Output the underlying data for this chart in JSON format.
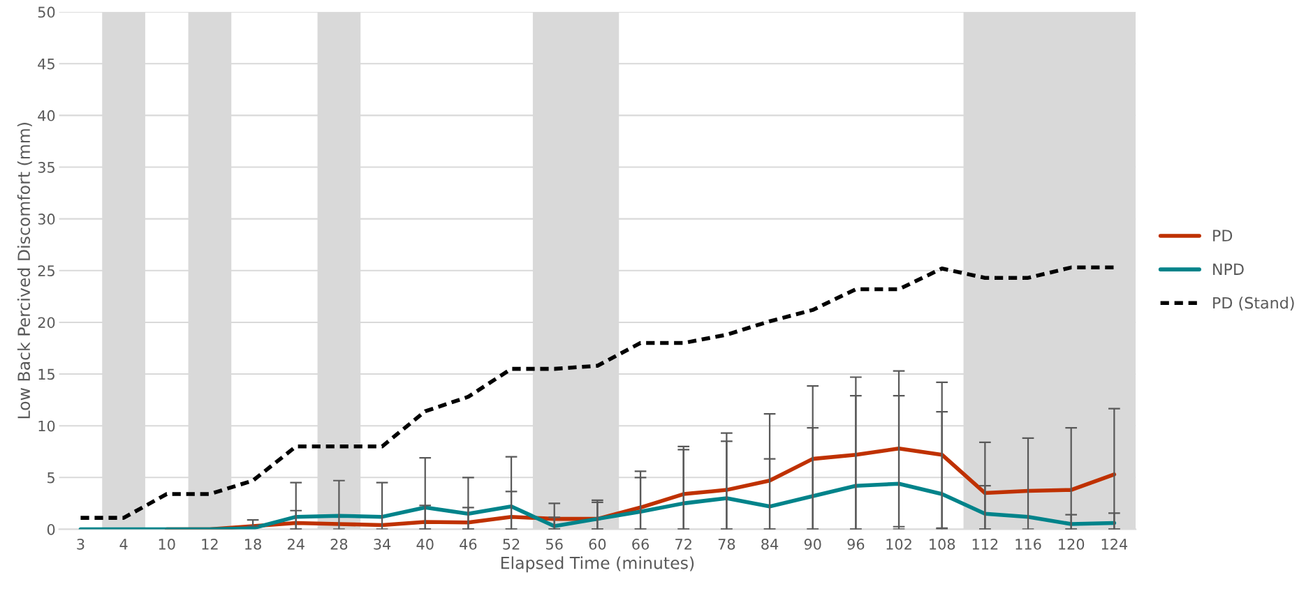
{
  "chart_data": {
    "type": "line",
    "xlabel": "Elapsed Time (minutes)",
    "ylabel": "Low Back Percived Discomfort (mm)",
    "categories": [
      "3",
      "4",
      "10",
      "12",
      "18",
      "24",
      "28",
      "34",
      "40",
      "46",
      "52",
      "56",
      "60",
      "66",
      "72",
      "78",
      "84",
      "90",
      "96",
      "102",
      "108",
      "112",
      "116",
      "120",
      "124"
    ],
    "series": [
      {
        "name": "PD",
        "color": "#bf3100",
        "values": [
          null,
          null,
          0,
          0,
          0.3,
          0.6,
          0.5,
          0.4,
          0.7,
          0.65,
          1.2,
          1.0,
          1.0,
          2.1,
          3.4,
          3.8,
          4.7,
          6.8,
          7.2,
          7.8,
          7.2,
          3.5,
          3.7,
          3.8,
          5.3
        ],
        "errors": [
          null,
          null,
          null,
          null,
          [
            0.3,
            0.9
          ],
          [
            0,
            1.8
          ],
          null,
          null,
          [
            0,
            2.3
          ],
          [
            0,
            2.1
          ],
          [
            0,
            3.65
          ],
          [
            0,
            2.5
          ],
          [
            0,
            2.8
          ],
          [
            0,
            5.6
          ],
          [
            0,
            8.0
          ],
          [
            0,
            9.3
          ],
          [
            0,
            11.15
          ],
          [
            0,
            13.85
          ],
          [
            0,
            14.7
          ],
          [
            0.25,
            15.3
          ],
          [
            0.1,
            14.2
          ],
          [
            0,
            8.4
          ],
          [
            0,
            8.8
          ],
          [
            0,
            9.8
          ],
          [
            0,
            11.65
          ]
        ]
      },
      {
        "name": "NPD",
        "color": "#00838a",
        "values": [
          0,
          0,
          0,
          0,
          0.1,
          1.2,
          1.3,
          1.2,
          2.1,
          1.5,
          2.2,
          0.3,
          1.0,
          1.7,
          2.5,
          3.0,
          2.2,
          3.2,
          4.2,
          4.4,
          3.4,
          1.5,
          1.2,
          0.5,
          0.6
        ],
        "errors": [
          null,
          null,
          null,
          null,
          null,
          [
            0,
            4.5
          ],
          [
            0,
            4.7
          ],
          [
            0,
            4.5
          ],
          [
            0,
            6.9
          ],
          [
            0,
            5.0
          ],
          [
            0,
            7.0
          ],
          [
            0,
            1.15
          ],
          [
            0,
            2.6
          ],
          [
            0,
            5.0
          ],
          [
            0,
            7.7
          ],
          [
            0,
            8.5
          ],
          [
            0,
            6.8
          ],
          [
            0,
            9.8
          ],
          [
            0,
            12.9
          ],
          [
            0,
            12.9
          ],
          [
            0,
            11.35
          ],
          [
            0,
            4.2
          ],
          null,
          [
            0,
            1.4
          ],
          [
            0,
            1.55
          ]
        ]
      },
      {
        "name": "PD (Stand)",
        "color": "#000000",
        "line_style": "dashed",
        "values": [
          1.1,
          1.1,
          3.4,
          3.4,
          4.7,
          8.0,
          8.0,
          8.0,
          11.4,
          12.8,
          15.5,
          15.5,
          15.8,
          18.0,
          18.0,
          18.8,
          20.1,
          21.2,
          23.2,
          23.2,
          25.2,
          24.3,
          24.3,
          25.3,
          25.3
        ]
      }
    ],
    "bands": [
      {
        "axis": "x",
        "from": "4",
        "to": "4",
        "color": "#d9d9d9"
      },
      {
        "axis": "x",
        "from": "12",
        "to": "12",
        "color": "#d9d9d9"
      },
      {
        "axis": "x",
        "from": "28",
        "to": "28",
        "color": "#d9d9d9"
      },
      {
        "axis": "x",
        "from": "56",
        "to": "60",
        "color": "#d9d9d9"
      },
      {
        "axis": "x",
        "from": "112",
        "to": "124",
        "color": "#d9d9d9"
      }
    ],
    "ylim": [
      0,
      50
    ],
    "yticks": [
      0,
      5,
      10,
      15,
      20,
      25,
      30,
      35,
      40,
      45,
      50
    ],
    "grid": "y",
    "legend": "right",
    "marker": "none"
  }
}
